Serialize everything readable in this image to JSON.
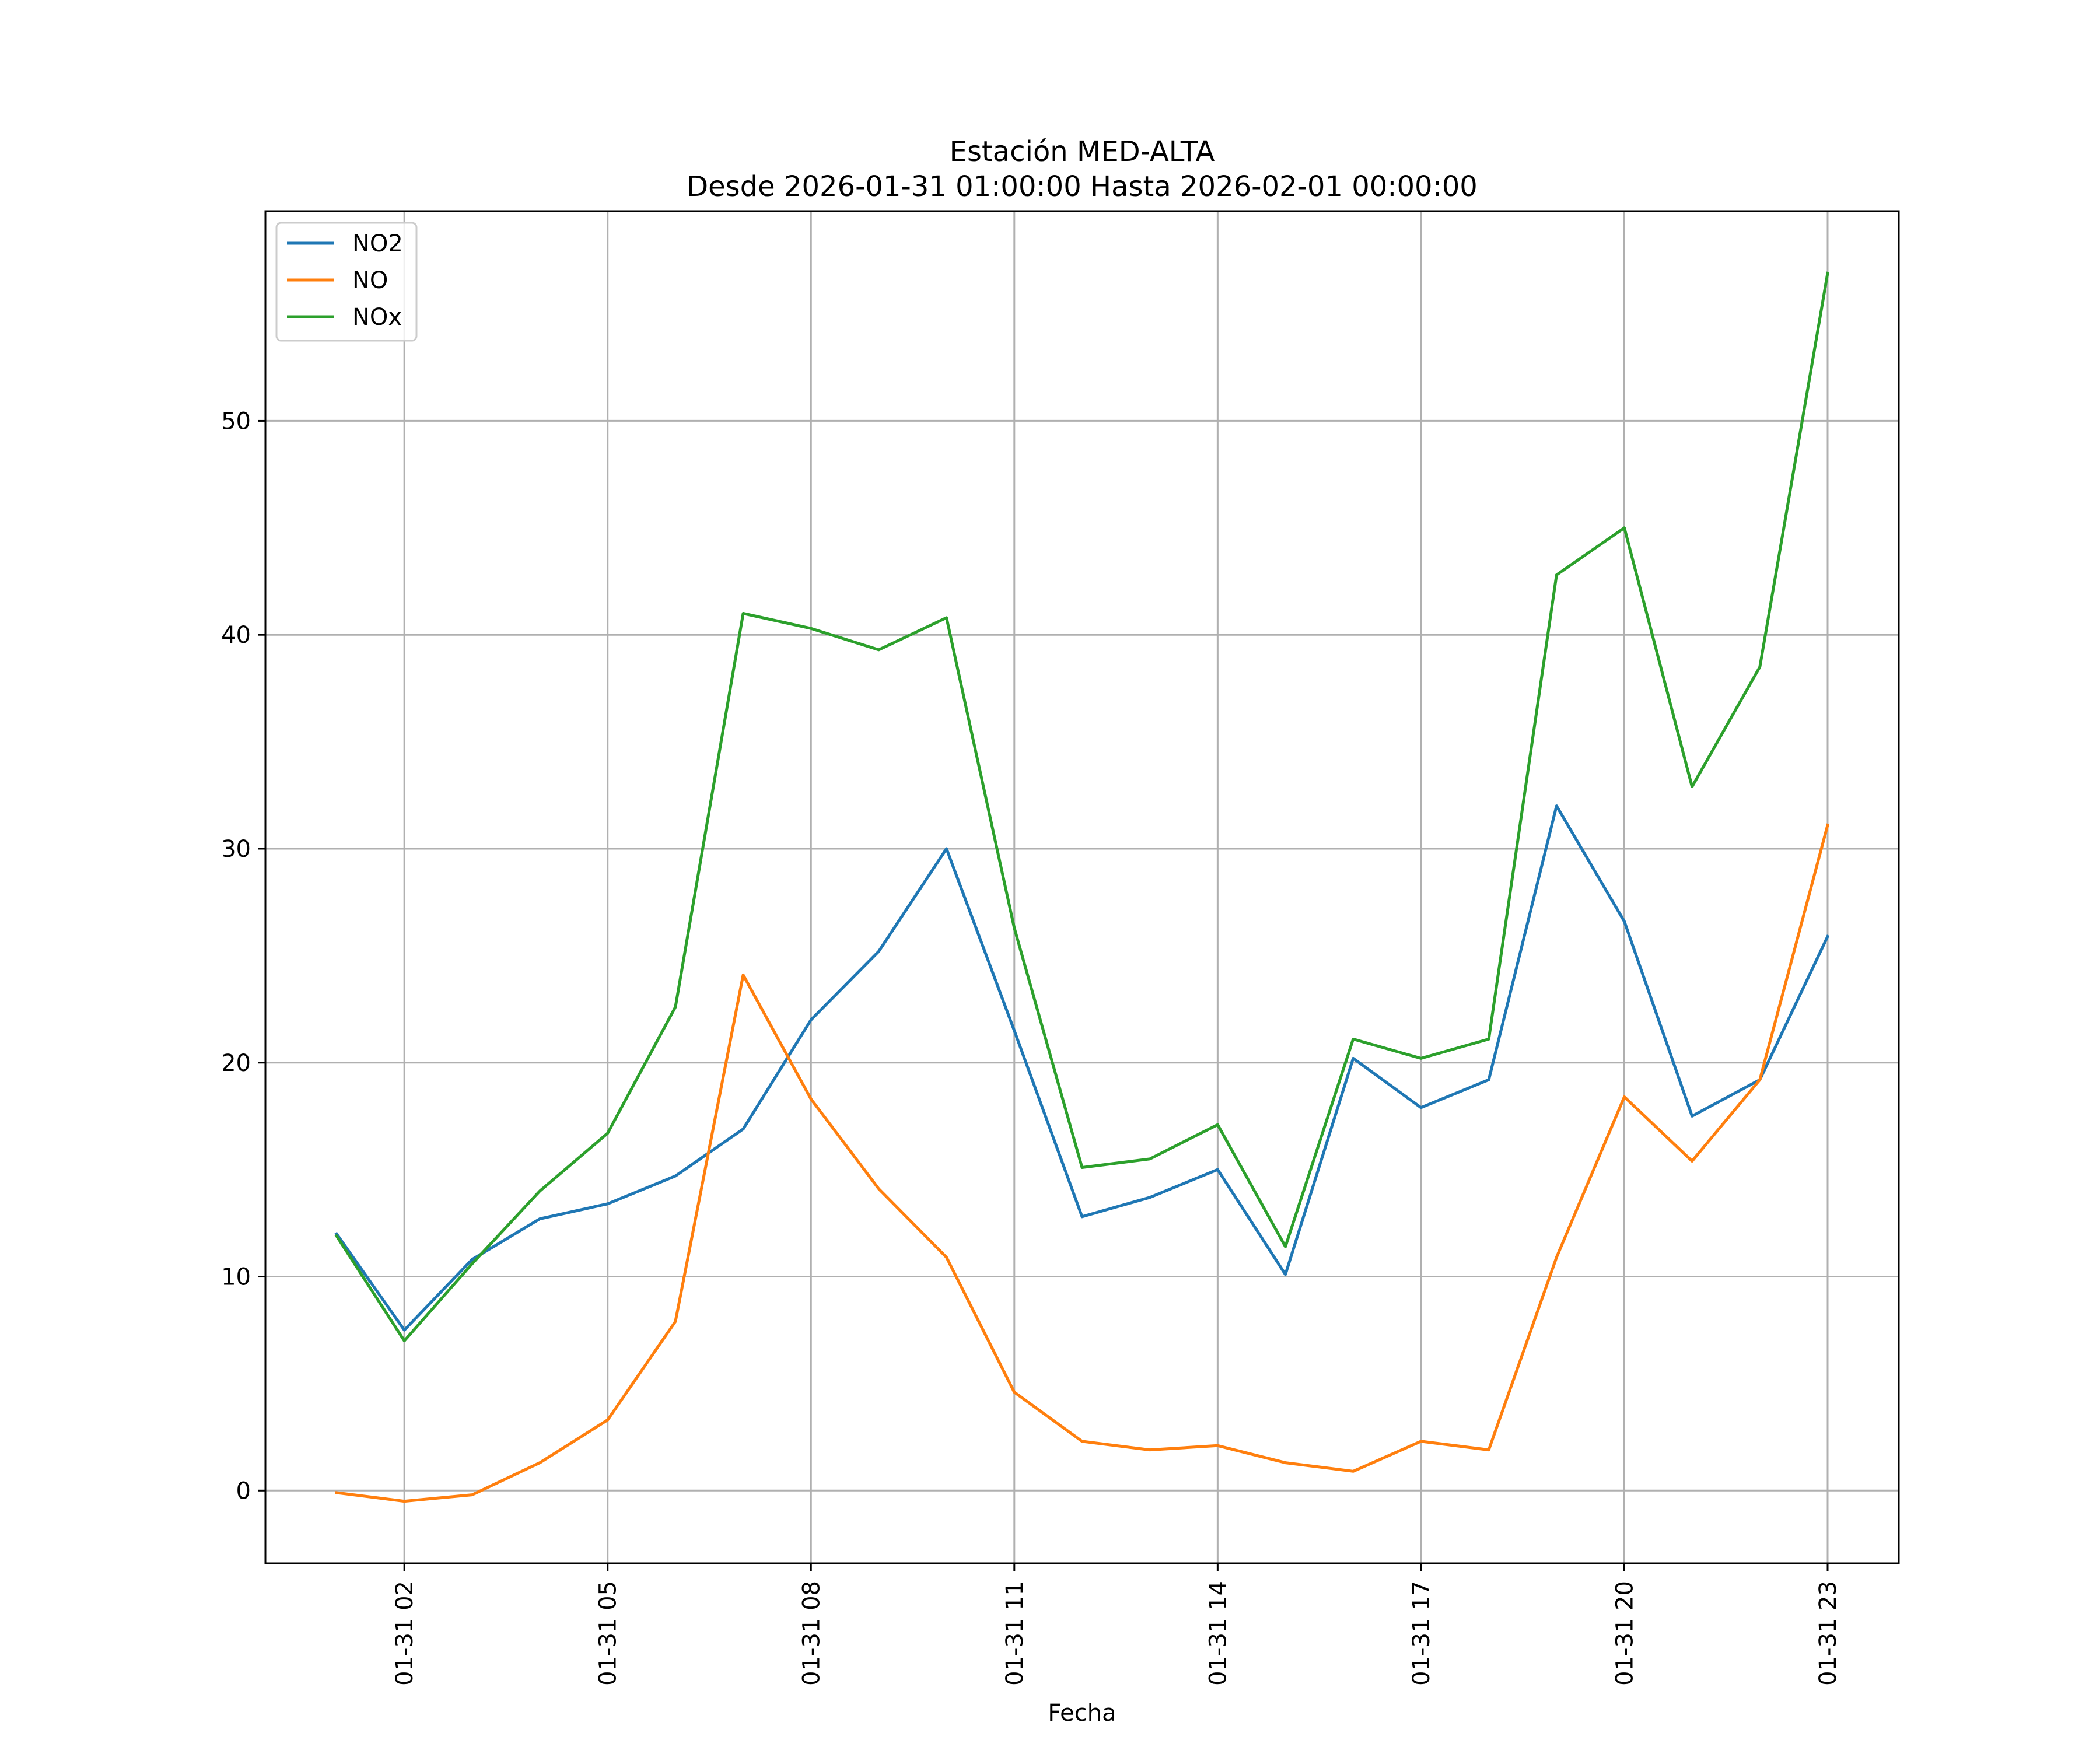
{
  "chart_data": {
    "type": "line",
    "title": "Estación MED-ALTA",
    "subtitle": "Desde 2026-01-31 01:00:00 Hasta 2026-02-01 00:00:00",
    "xlabel": "Fecha",
    "ylabel": "",
    "x": [
      "01-31 01",
      "01-31 02",
      "01-31 03",
      "01-31 04",
      "01-31 05",
      "01-31 06",
      "01-31 07",
      "01-31 08",
      "01-31 09",
      "01-31 10",
      "01-31 11",
      "01-31 12",
      "01-31 13",
      "01-31 14",
      "01-31 15",
      "01-31 16",
      "01-31 17",
      "01-31 18",
      "01-31 19",
      "01-31 20",
      "01-31 21",
      "01-31 22",
      "01-31 23"
    ],
    "x_tick_labels": [
      "01-31 02",
      "01-31 05",
      "01-31 08",
      "01-31 11",
      "01-31 14",
      "01-31 17",
      "01-31 20",
      "01-31 23"
    ],
    "y_ticks": [
      0,
      10,
      20,
      30,
      40,
      50
    ],
    "ylim": [
      -3.4,
      59.8
    ],
    "grid": true,
    "legend_position": "upper-left",
    "series": [
      {
        "name": "NO2",
        "color": "#1f77b4",
        "values": [
          12.0,
          7.5,
          10.8,
          12.7,
          13.4,
          14.7,
          16.9,
          22.0,
          25.2,
          30.0,
          21.5,
          12.8,
          13.7,
          15.0,
          10.1,
          20.2,
          17.9,
          19.2,
          32.0,
          26.6,
          17.5,
          19.2,
          25.9
        ]
      },
      {
        "name": "NO",
        "color": "#ff7f0e",
        "values": [
          -0.1,
          -0.5,
          -0.2,
          1.3,
          3.3,
          7.9,
          24.1,
          18.3,
          14.1,
          10.9,
          4.6,
          2.3,
          1.9,
          2.1,
          1.3,
          0.9,
          2.3,
          1.9,
          10.9,
          18.4,
          15.4,
          19.2,
          31.1
        ]
      },
      {
        "name": "NOx",
        "color": "#2ca02c",
        "values": [
          11.9,
          7.0,
          10.6,
          14.0,
          16.7,
          22.6,
          41.0,
          40.3,
          39.3,
          40.8,
          26.3,
          15.1,
          15.5,
          17.1,
          11.4,
          21.1,
          20.2,
          21.1,
          42.8,
          45.0,
          32.9,
          38.5,
          56.9
        ]
      }
    ]
  }
}
